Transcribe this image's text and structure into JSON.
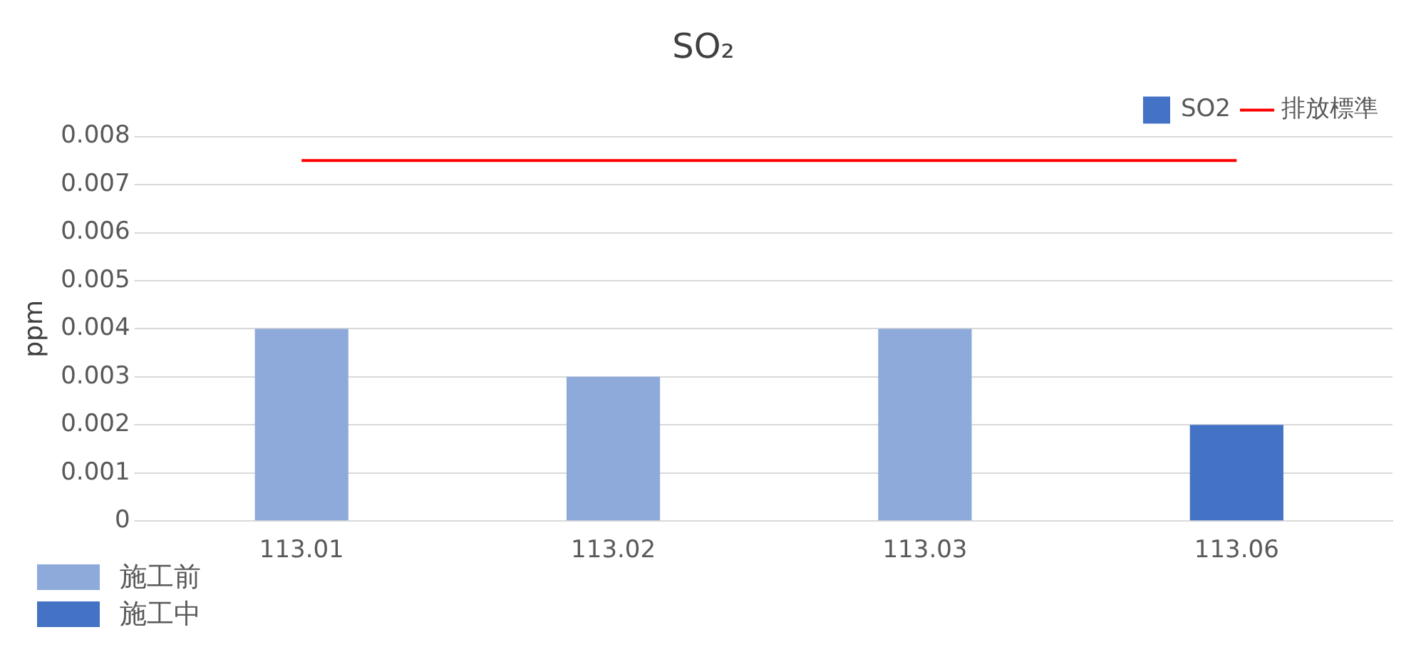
{
  "chart_data": {
    "type": "bar",
    "title": "SO₂",
    "ylabel": "ppm",
    "categories": [
      "113.01",
      "113.02",
      "113.03",
      "113.06"
    ],
    "series": [
      {
        "name": "SO2",
        "color": "#4472c4",
        "colors": [
          "#8eaadb",
          "#8eaadb",
          "#8eaadb",
          "#4472c4"
        ],
        "values": [
          0.004,
          0.003,
          0.004,
          0.002
        ]
      },
      {
        "name": "排放標準",
        "type": "line",
        "color": "#ff0000",
        "values": [
          0.0075,
          0.0075,
          0.0075,
          0.0075
        ]
      }
    ],
    "ylim": [
      0,
      0.008
    ],
    "yticks": [
      0,
      0.001,
      0.002,
      0.003,
      0.004,
      0.005,
      0.006,
      0.007,
      0.008
    ],
    "grid": "y",
    "legend": "top right",
    "marker": "none",
    "annotations": [
      "施工前",
      "施工中"
    ]
  }
}
